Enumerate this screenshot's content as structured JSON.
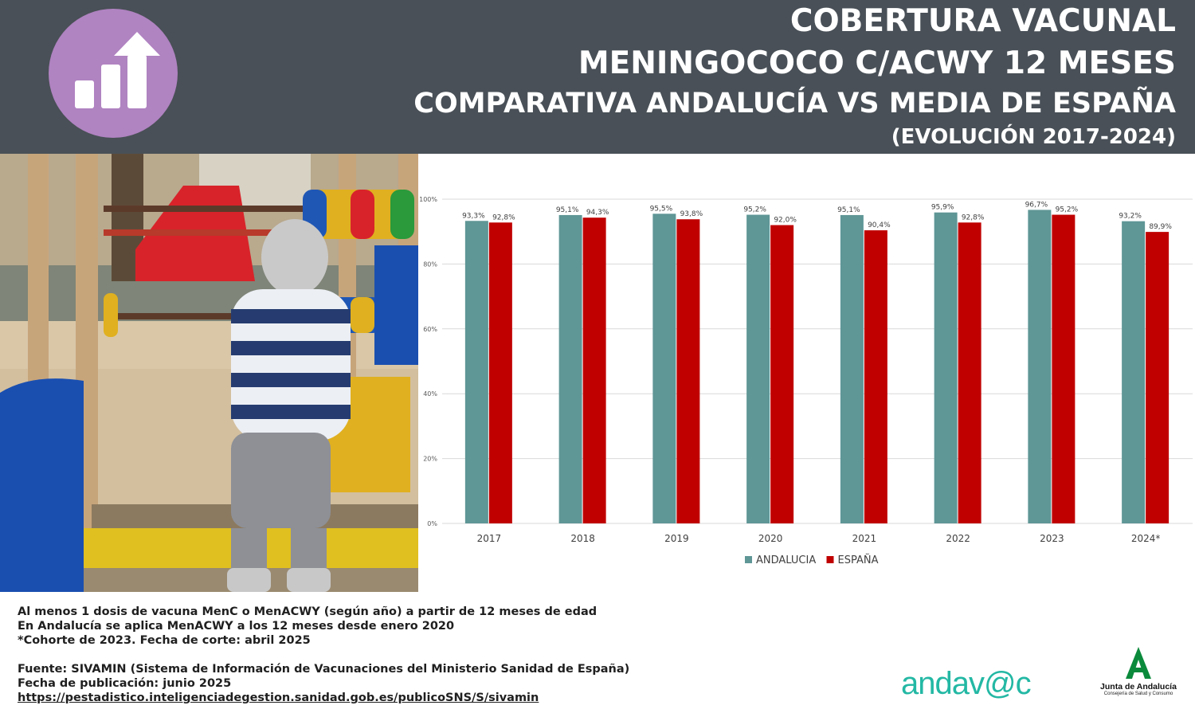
{
  "header": {
    "title_line1": "COBERTURA VACUNAL",
    "title_line2": "MENINGOCOCO C/ACWY 12 MESES",
    "title_line3": "COMPARATIVA ANDALUCÍA VS MEDIA DE ESPAÑA",
    "title_line4": "(EVOLUCIÓN 2017-2024)",
    "icon": "bar-chart-arrow-up-icon",
    "icon_color": "#b083c1",
    "background_color": "#495057"
  },
  "photo": {
    "subject": "toddler-at-playground-abacus"
  },
  "chart_data": {
    "type": "bar",
    "categories": [
      "2017",
      "2018",
      "2019",
      "2020",
      "2021",
      "2022",
      "2023",
      "2024*"
    ],
    "series": [
      {
        "name": "ANDALUCIA",
        "color": "#5f9696",
        "values": [
          93.3,
          95.1,
          95.5,
          95.2,
          95.1,
          95.9,
          96.7,
          93.2
        ],
        "labels": [
          "93,3%",
          "95,1%",
          "95,5%",
          "95,2%",
          "95,1%",
          "95,9%",
          "96,7%",
          "93,2%"
        ]
      },
      {
        "name": "ESPAÑA",
        "color": "#c00000",
        "values": [
          92.8,
          94.3,
          93.8,
          92.0,
          90.4,
          92.8,
          95.2,
          89.9
        ],
        "labels": [
          "92,8%",
          "94,3%",
          "93,8%",
          "92,0%",
          "90,4%",
          "92,8%",
          "95,2%",
          "89,9%"
        ]
      }
    ],
    "ylim": [
      0,
      100
    ],
    "yticks": [
      0,
      20,
      40,
      60,
      80,
      100
    ],
    "ytick_labels": [
      "0%",
      "20%",
      "40%",
      "60%",
      "80%",
      "100%"
    ],
    "grid": true,
    "legend_position": "bottom-center"
  },
  "footer": {
    "note_line1": "Al menos 1 dosis de vacuna MenC o MenACWY (según año) a partir de 12 meses de edad",
    "note_line2": "En Andalucía se aplica MenACWY a los 12 meses desde enero 2020",
    "note_line3": "*Cohorte de 2023. Fecha de corte: abril 2025",
    "source_line": "Fuente: SIVAMIN (Sistema de Información de Vacunaciones del Ministerio Sanidad de España)",
    "publication_line": "Fecha de publicación: junio 2025",
    "source_url": "https://pestadistico.inteligenciadegestion.sanidad.gob.es/publicoSNS/S/sivamin"
  },
  "logos": {
    "andavac_text": "andav@c",
    "andavac_color": "#23b8a4",
    "junta_name": "Junta de Andalucía",
    "junta_dept": "Consejería de Salud y Consumo",
    "junta_color": "#0b8a3c"
  }
}
